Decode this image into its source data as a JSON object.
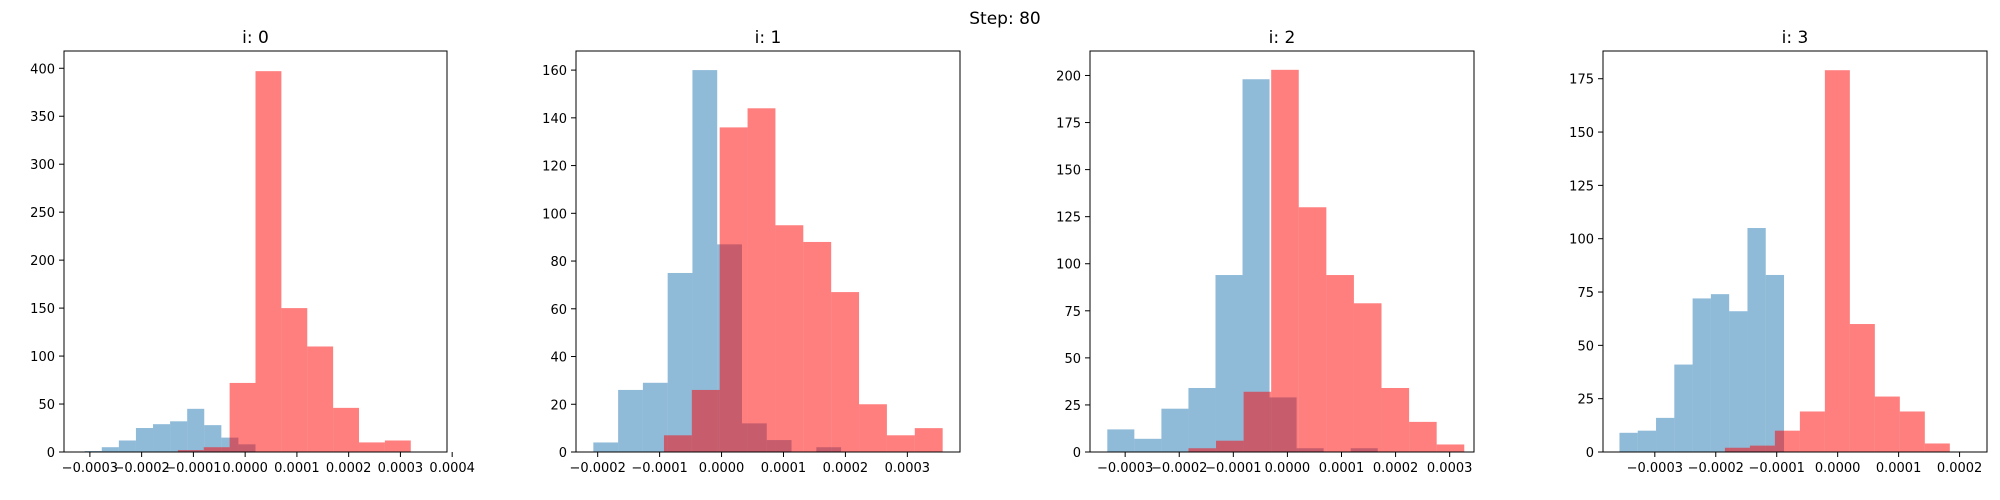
{
  "suptitle": "Step: 80",
  "colors": {
    "blue": "#1f77b4",
    "red": "#ff0000",
    "blue_alpha": 0.5,
    "red_alpha": 0.5
  },
  "chart_data": [
    {
      "type": "histogram",
      "title": "i: 0",
      "xlim": [
        -0.00035,
        0.00039
      ],
      "ylim": [
        0,
        418
      ],
      "xticks": [
        -0.0003,
        -0.0002,
        -0.0001,
        0.0,
        0.0001,
        0.0002,
        0.0003,
        0.0004
      ],
      "xtick_labels": [
        "−0.0003",
        "−0.0002",
        "−0.0001",
        "0.0000",
        "0.0001",
        "0.0002",
        "0.0003",
        "0.0004"
      ],
      "yticks": [
        0,
        50,
        100,
        150,
        200,
        250,
        300,
        350,
        400
      ],
      "ytick_labels": [
        "0",
        "50",
        "100",
        "150",
        "200",
        "250",
        "300",
        "350",
        "400"
      ],
      "series": [
        {
          "name": "blue",
          "color": "blue",
          "bin_edges": [
            -0.00031,
            -0.000277,
            -0.000244,
            -0.000211,
            -0.000178,
            -0.000145,
            -0.000112,
            -7.9e-05,
            -4.6e-05,
            -1.3e-05,
            2e-05
          ],
          "counts": [
            1,
            5,
            12,
            25,
            29,
            32,
            45,
            28,
            15,
            8
          ]
        },
        {
          "name": "red",
          "color": "red",
          "bin_edges": [
            -0.00013,
            -8e-05,
            -3e-05,
            2e-05,
            7e-05,
            0.00012,
            0.00017,
            0.00022,
            0.00027,
            0.00032,
            0.00037
          ],
          "counts": [
            2,
            5,
            72,
            397,
            150,
            110,
            46,
            10,
            12,
            0
          ]
        }
      ]
    },
    {
      "type": "histogram",
      "title": "i: 1",
      "xlim": [
        -0.000235,
        0.000385
      ],
      "ylim": [
        0,
        168
      ],
      "xticks": [
        -0.0002,
        -0.0001,
        0.0,
        0.0001,
        0.0002,
        0.0003
      ],
      "xtick_labels": [
        "−0.0002",
        "−0.0001",
        "0.0000",
        "0.0001",
        "0.0002",
        "0.0003"
      ],
      "yticks": [
        0,
        20,
        40,
        60,
        80,
        100,
        120,
        140,
        160
      ],
      "ytick_labels": [
        "0",
        "20",
        "40",
        "60",
        "80",
        "100",
        "120",
        "140",
        "160"
      ],
      "series": [
        {
          "name": "blue",
          "color": "blue",
          "bin_edges": [
            -0.000207,
            -0.000167,
            -0.000127,
            -8.7e-05,
            -4.7e-05,
            -7e-06,
            3.3e-05,
            7.3e-05,
            0.000113,
            0.000153,
            0.000193
          ],
          "counts": [
            4,
            26,
            29,
            75,
            160,
            87,
            12,
            5,
            0,
            2
          ]
        },
        {
          "name": "red",
          "color": "red",
          "bin_edges": [
            -9.3e-05,
            -4.8e-05,
            -3e-06,
            4.2e-05,
            8.7e-05,
            0.000132,
            0.000177,
            0.000222,
            0.000267,
            0.000312,
            0.000357
          ],
          "counts": [
            7,
            26,
            136,
            144,
            95,
            88,
            67,
            20,
            7,
            10
          ]
        }
      ]
    },
    {
      "type": "histogram",
      "title": "i: 2",
      "xlim": [
        -0.000365,
        0.000345
      ],
      "ylim": [
        0,
        213
      ],
      "xticks": [
        -0.0003,
        -0.0002,
        -0.0001,
        0.0,
        0.0001,
        0.0002,
        0.0003
      ],
      "xtick_labels": [
        "−0.0003",
        "−0.0002",
        "−0.0001",
        "0.0000",
        "0.0001",
        "0.0002",
        "0.0003"
      ],
      "yticks": [
        0,
        25,
        50,
        75,
        100,
        125,
        150,
        175,
        200
      ],
      "ytick_labels": [
        "0",
        "25",
        "50",
        "75",
        "100",
        "125",
        "150",
        "175",
        "200"
      ],
      "series": [
        {
          "name": "blue",
          "color": "blue",
          "bin_edges": [
            -0.000333,
            -0.000283,
            -0.000233,
            -0.000183,
            -0.000133,
            -8.3e-05,
            -3.3e-05,
            1.7e-05,
            6.7e-05,
            0.000117,
            0.000167
          ],
          "counts": [
            12,
            7,
            23,
            34,
            94,
            198,
            29,
            2,
            0,
            2
          ]
        },
        {
          "name": "red",
          "color": "red",
          "bin_edges": [
            -0.000183,
            -0.000132,
            -8.1e-05,
            -3e-05,
            2.1e-05,
            7.2e-05,
            0.000123,
            0.000174,
            0.000225,
            0.000276,
            0.000327
          ],
          "counts": [
            2,
            6,
            32,
            203,
            130,
            94,
            79,
            34,
            16,
            4
          ]
        }
      ]
    },
    {
      "type": "histogram",
      "title": "i: 3",
      "xlim": [
        -0.000385,
        0.000245
      ],
      "ylim": [
        0,
        188
      ],
      "xticks": [
        -0.0003,
        -0.0002,
        -0.0001,
        0.0,
        0.0001,
        0.0002
      ],
      "xtick_labels": [
        "−0.0003",
        "−0.0002",
        "−0.0001",
        "0.0000",
        "0.0001",
        "0.0002"
      ],
      "yticks": [
        0,
        25,
        50,
        75,
        100,
        125,
        150,
        175
      ],
      "ytick_labels": [
        "0",
        "25",
        "50",
        "75",
        "100",
        "125",
        "150",
        "175"
      ],
      "series": [
        {
          "name": "blue",
          "color": "blue",
          "bin_edges": [
            -0.000358,
            -0.000328,
            -0.000298,
            -0.000268,
            -0.000238,
            -0.000208,
            -0.000178,
            -0.000148,
            -0.000118,
            -8.8e-05,
            -5.8e-05
          ],
          "counts": [
            9,
            10,
            16,
            41,
            72,
            74,
            66,
            105,
            83,
            0
          ]
        },
        {
          "name": "red",
          "color": "red",
          "bin_edges": [
            -0.000185,
            -0.000144,
            -0.000103,
            -6.2e-05,
            -2.1e-05,
            2e-05,
            6.1e-05,
            0.000102,
            0.000143,
            0.000184,
            0.000225
          ],
          "counts": [
            2,
            3,
            10,
            19,
            179,
            60,
            26,
            19,
            4,
            0
          ]
        }
      ]
    }
  ]
}
